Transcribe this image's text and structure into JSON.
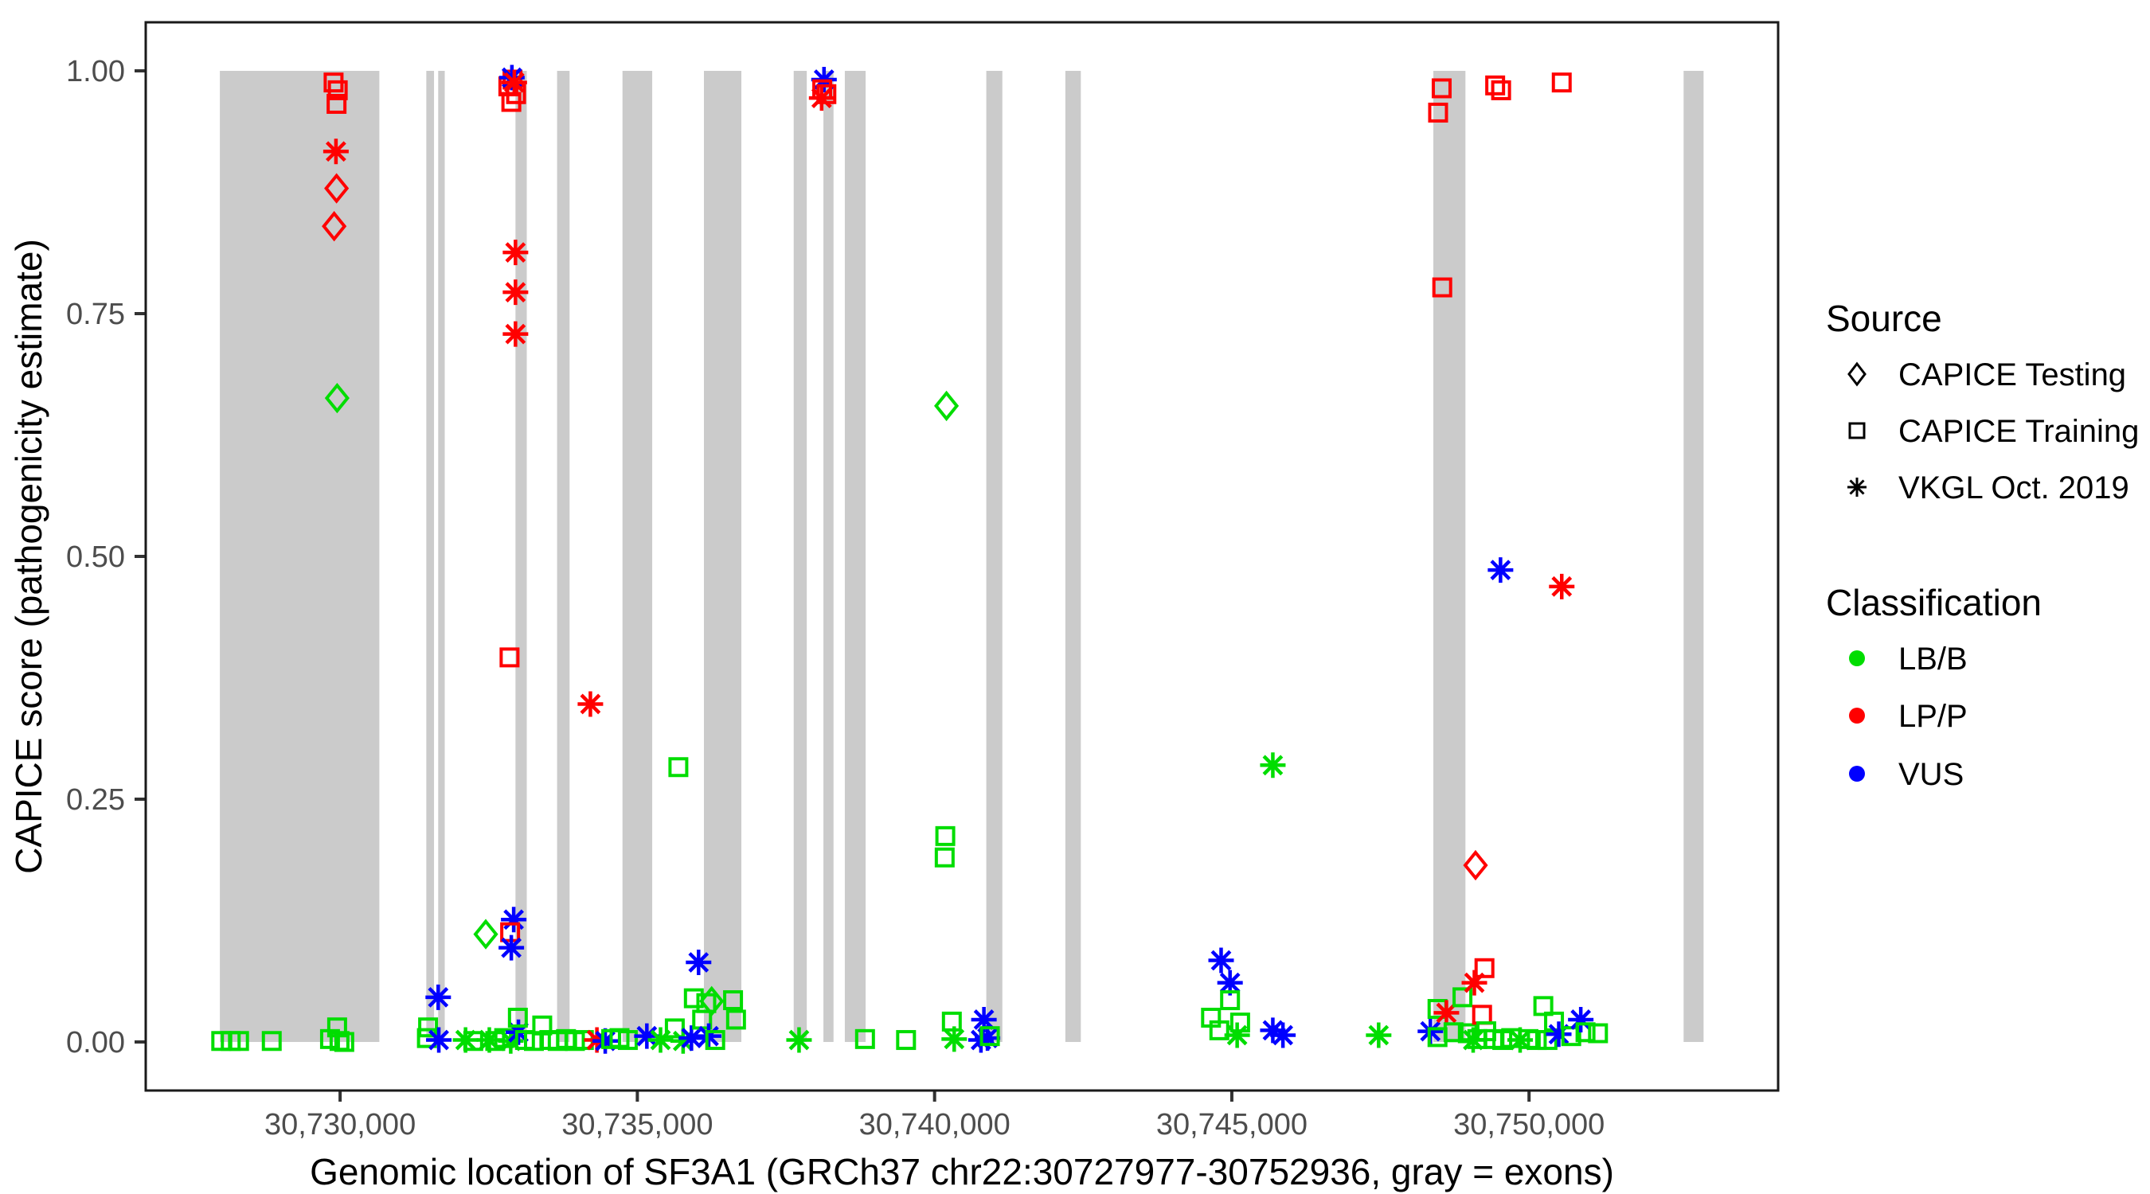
{
  "axes": {
    "x": {
      "title": "Genomic location of SF3A1 (GRCh37 chr22:30727977-30752936, gray = exons)",
      "ticks": [
        {
          "value": 30730000,
          "label": "30,730,000"
        },
        {
          "value": 30735000,
          "label": "30,735,000"
        },
        {
          "value": 30740000,
          "label": "30,740,000"
        },
        {
          "value": 30745000,
          "label": "30,745,000"
        },
        {
          "value": 30750000,
          "label": "30,750,000"
        }
      ]
    },
    "y": {
      "title": "CAPICE score (pathogenicity estimate)",
      "ticks": [
        {
          "value": 0.0,
          "label": "0.00"
        },
        {
          "value": 0.25,
          "label": "0.25"
        },
        {
          "value": 0.5,
          "label": "0.50"
        },
        {
          "value": 0.75,
          "label": "0.75"
        },
        {
          "value": 1.0,
          "label": "1.00"
        }
      ]
    }
  },
  "legend": {
    "source": {
      "title": "Source",
      "items": [
        {
          "label": "CAPICE Testing",
          "shape": "diamond"
        },
        {
          "label": "CAPICE Training",
          "shape": "square"
        },
        {
          "label": "VKGL Oct. 2019",
          "shape": "asterisk"
        }
      ]
    },
    "classification": {
      "title": "Classification",
      "items": [
        {
          "label": "LB/B",
          "color": "#00DD00"
        },
        {
          "label": "LP/P",
          "color": "#FF0000"
        },
        {
          "label": "VUS",
          "color": "#0000FF"
        }
      ]
    }
  },
  "colors": {
    "exon": "#CBCBCB",
    "panel_border": "#1a1a1a",
    "tick_text": "#4d4d4d",
    "lbb": "#00DD00",
    "lpp": "#FF0000",
    "vus": "#0000FF"
  },
  "chart_data": {
    "type": "scatter",
    "title": "",
    "xlabel": "Genomic location of SF3A1 (GRCh37 chr22:30727977-30752936, gray = exons)",
    "ylabel": "CAPICE score (pathogenicity estimate)",
    "x_domain": [
      30726730,
      30754190
    ],
    "y_domain": [
      -0.05,
      1.05
    ],
    "gene_region": {
      "chrom": "chr22",
      "start": 30727977,
      "end": 30752936,
      "gene": "SF3A1",
      "build": "GRCh37"
    },
    "exons": [
      [
        30727977,
        30730660
      ],
      [
        30731450,
        30731580
      ],
      [
        30731650,
        30731760
      ],
      [
        30732950,
        30733140
      ],
      [
        30733650,
        30733860
      ],
      [
        30734750,
        30735250
      ],
      [
        30736120,
        30736750
      ],
      [
        30737630,
        30737850
      ],
      [
        30738130,
        30738300
      ],
      [
        30738490,
        30738840
      ],
      [
        30740870,
        30741140
      ],
      [
        30742200,
        30742460
      ],
      [
        30748390,
        30748930
      ],
      [
        30752600,
        30752936
      ]
    ],
    "point_encoding": "[position_bp, capice_score, source(d=CAPICE Testing diamond, s=CAPICE Training square, a=VKGL Oct. 2019 asterisk), class(g=LB/B, r=LP/P, b=VUS)]",
    "points": [
      [
        30728000,
        0.001,
        "s",
        "g"
      ],
      [
        30728160,
        0.001,
        "s",
        "g"
      ],
      [
        30728300,
        0.001,
        "s",
        "g"
      ],
      [
        30728850,
        0.001,
        "s",
        "g"
      ],
      [
        30729830,
        0.003,
        "s",
        "g"
      ],
      [
        30729950,
        0.015,
        "s",
        "g"
      ],
      [
        30729990,
        0.001,
        "s",
        "g"
      ],
      [
        30730070,
        0.0,
        "s",
        "g"
      ],
      [
        30729890,
        0.988,
        "s",
        "r"
      ],
      [
        30729960,
        0.98,
        "s",
        "r"
      ],
      [
        30729940,
        0.966,
        "s",
        "r"
      ],
      [
        30729930,
        0.917,
        "a",
        "r"
      ],
      [
        30729940,
        0.879,
        "d",
        "r"
      ],
      [
        30729900,
        0.84,
        "d",
        "r"
      ],
      [
        30729950,
        0.663,
        "d",
        "g"
      ],
      [
        30731460,
        0.004,
        "s",
        "g"
      ],
      [
        30731480,
        0.015,
        "s",
        "g"
      ],
      [
        30731650,
        0.046,
        "a",
        "b"
      ],
      [
        30731660,
        0.002,
        "a",
        "b"
      ],
      [
        30732110,
        0.002,
        "a",
        "g"
      ],
      [
        30732240,
        0.001,
        "s",
        "g"
      ],
      [
        30732510,
        0.002,
        "a",
        "g"
      ],
      [
        30732610,
        0.001,
        "s",
        "g"
      ],
      [
        30732760,
        0.004,
        "s",
        "g"
      ],
      [
        30732870,
        0.001,
        "a",
        "g"
      ],
      [
        30732450,
        0.111,
        "d",
        "g"
      ],
      [
        30732920,
        0.126,
        "a",
        "b"
      ],
      [
        30732860,
        0.113,
        "s",
        "r"
      ],
      [
        30732880,
        0.097,
        "a",
        "b"
      ],
      [
        30732850,
        0.396,
        "s",
        "r"
      ],
      [
        30732950,
        0.813,
        "a",
        "r"
      ],
      [
        30732950,
        0.772,
        "a",
        "r"
      ],
      [
        30732950,
        0.729,
        "a",
        "r"
      ],
      [
        30732900,
        0.991,
        "s",
        "r"
      ],
      [
        30732830,
        0.984,
        "s",
        "r"
      ],
      [
        30732960,
        0.976,
        "s",
        "r"
      ],
      [
        30732880,
        0.968,
        "s",
        "r"
      ],
      [
        30732890,
        0.993,
        "a",
        "b"
      ],
      [
        30732930,
        0.988,
        "a",
        "r"
      ],
      [
        30733000,
        0.01,
        "a",
        "b"
      ],
      [
        30732990,
        0.025,
        "s",
        "g"
      ],
      [
        30733110,
        0.002,
        "s",
        "g"
      ],
      [
        30733260,
        0.001,
        "s",
        "g"
      ],
      [
        30733400,
        0.017,
        "s",
        "g"
      ],
      [
        30733520,
        0.002,
        "s",
        "g"
      ],
      [
        30733660,
        0.001,
        "s",
        "g"
      ],
      [
        30733800,
        0.003,
        "s",
        "g"
      ],
      [
        30733950,
        0.001,
        "s",
        "g"
      ],
      [
        30734100,
        0.002,
        "s",
        "g"
      ],
      [
        30734210,
        0.348,
        "a",
        "r"
      ],
      [
        30734320,
        0.002,
        "a",
        "r"
      ],
      [
        30734460,
        0.001,
        "a",
        "b"
      ],
      [
        30734560,
        0.003,
        "s",
        "g"
      ],
      [
        30734700,
        0.004,
        "s",
        "g"
      ],
      [
        30734840,
        0.002,
        "s",
        "g"
      ],
      [
        30735160,
        0.006,
        "a",
        "b"
      ],
      [
        30735390,
        0.002,
        "a",
        "g"
      ],
      [
        30735630,
        0.014,
        "s",
        "g"
      ],
      [
        30735690,
        0.283,
        "s",
        "g"
      ],
      [
        30735770,
        0.001,
        "a",
        "g"
      ],
      [
        30735910,
        0.004,
        "a",
        "b"
      ],
      [
        30735950,
        0.045,
        "s",
        "g"
      ],
      [
        30736030,
        0.082,
        "a",
        "b"
      ],
      [
        30736090,
        0.023,
        "s",
        "g"
      ],
      [
        30736160,
        0.04,
        "s",
        "g"
      ],
      [
        30736250,
        0.042,
        "d",
        "g"
      ],
      [
        30736200,
        0.006,
        "a",
        "b"
      ],
      [
        30736310,
        0.002,
        "s",
        "g"
      ],
      [
        30736610,
        0.043,
        "s",
        "g"
      ],
      [
        30736660,
        0.023,
        "s",
        "g"
      ],
      [
        30737720,
        0.002,
        "a",
        "g"
      ],
      [
        30738140,
        0.991,
        "a",
        "b"
      ],
      [
        30738110,
        0.981,
        "s",
        "r"
      ],
      [
        30738180,
        0.976,
        "s",
        "r"
      ],
      [
        30738100,
        0.972,
        "a",
        "r"
      ],
      [
        30738830,
        0.003,
        "s",
        "g"
      ],
      [
        30739520,
        0.002,
        "s",
        "g"
      ],
      [
        30740170,
        0.19,
        "s",
        "g"
      ],
      [
        30740180,
        0.212,
        "s",
        "g"
      ],
      [
        30740200,
        0.655,
        "d",
        "g"
      ],
      [
        30740290,
        0.021,
        "s",
        "g"
      ],
      [
        30740330,
        0.003,
        "a",
        "g"
      ],
      [
        30740780,
        0.002,
        "a",
        "b"
      ],
      [
        30740830,
        0.023,
        "a",
        "b"
      ],
      [
        30740890,
        0.004,
        "a",
        "b"
      ],
      [
        30740930,
        0.006,
        "s",
        "g"
      ],
      [
        30744650,
        0.025,
        "s",
        "g"
      ],
      [
        30744790,
        0.012,
        "s",
        "g"
      ],
      [
        30744820,
        0.084,
        "a",
        "b"
      ],
      [
        30744970,
        0.061,
        "a",
        "b"
      ],
      [
        30744970,
        0.043,
        "s",
        "g"
      ],
      [
        30745090,
        0.007,
        "a",
        "g"
      ],
      [
        30745140,
        0.02,
        "s",
        "g"
      ],
      [
        30745690,
        0.285,
        "a",
        "g"
      ],
      [
        30745690,
        0.012,
        "a",
        "b"
      ],
      [
        30745860,
        0.007,
        "a",
        "b"
      ],
      [
        30747470,
        0.007,
        "a",
        "g"
      ],
      [
        30748340,
        0.011,
        "a",
        "b"
      ],
      [
        30748460,
        0.005,
        "s",
        "g"
      ],
      [
        30748460,
        0.034,
        "s",
        "g"
      ],
      [
        30748530,
        0.982,
        "s",
        "r"
      ],
      [
        30748470,
        0.957,
        "s",
        "r"
      ],
      [
        30748540,
        0.777,
        "s",
        "r"
      ],
      [
        30748610,
        0.03,
        "a",
        "r"
      ],
      [
        30748730,
        0.01,
        "s",
        "g"
      ],
      [
        30748880,
        0.046,
        "s",
        "g"
      ],
      [
        30748970,
        0.009,
        "s",
        "g"
      ],
      [
        30749060,
        0.002,
        "a",
        "g"
      ],
      [
        30749080,
        0.061,
        "a",
        "r"
      ],
      [
        30749100,
        0.182,
        "d",
        "r"
      ],
      [
        30749130,
        0.003,
        "s",
        "g"
      ],
      [
        30749210,
        0.028,
        "s",
        "r"
      ],
      [
        30749250,
        0.076,
        "s",
        "r"
      ],
      [
        30749280,
        0.011,
        "s",
        "g"
      ],
      [
        30749400,
        0.003,
        "s",
        "g"
      ],
      [
        30749430,
        0.985,
        "s",
        "r"
      ],
      [
        30749530,
        0.98,
        "s",
        "r"
      ],
      [
        30749520,
        0.486,
        "a",
        "b"
      ],
      [
        30749550,
        0.002,
        "s",
        "g"
      ],
      [
        30749700,
        0.004,
        "s",
        "g"
      ],
      [
        30749850,
        0.002,
        "a",
        "g"
      ],
      [
        30749990,
        0.003,
        "s",
        "g"
      ],
      [
        30750130,
        0.002,
        "s",
        "g"
      ],
      [
        30750240,
        0.037,
        "s",
        "g"
      ],
      [
        30750310,
        0.002,
        "s",
        "g"
      ],
      [
        30750420,
        0.021,
        "s",
        "g"
      ],
      [
        30750500,
        0.008,
        "a",
        "b"
      ],
      [
        30750550,
        0.988,
        "s",
        "r"
      ],
      [
        30750550,
        0.469,
        "a",
        "r"
      ],
      [
        30750710,
        0.006,
        "s",
        "g"
      ],
      [
        30750870,
        0.023,
        "a",
        "b"
      ],
      [
        30750950,
        0.01,
        "s",
        "g"
      ],
      [
        30751160,
        0.009,
        "s",
        "g"
      ]
    ],
    "legend_position": "right",
    "grid": false
  }
}
